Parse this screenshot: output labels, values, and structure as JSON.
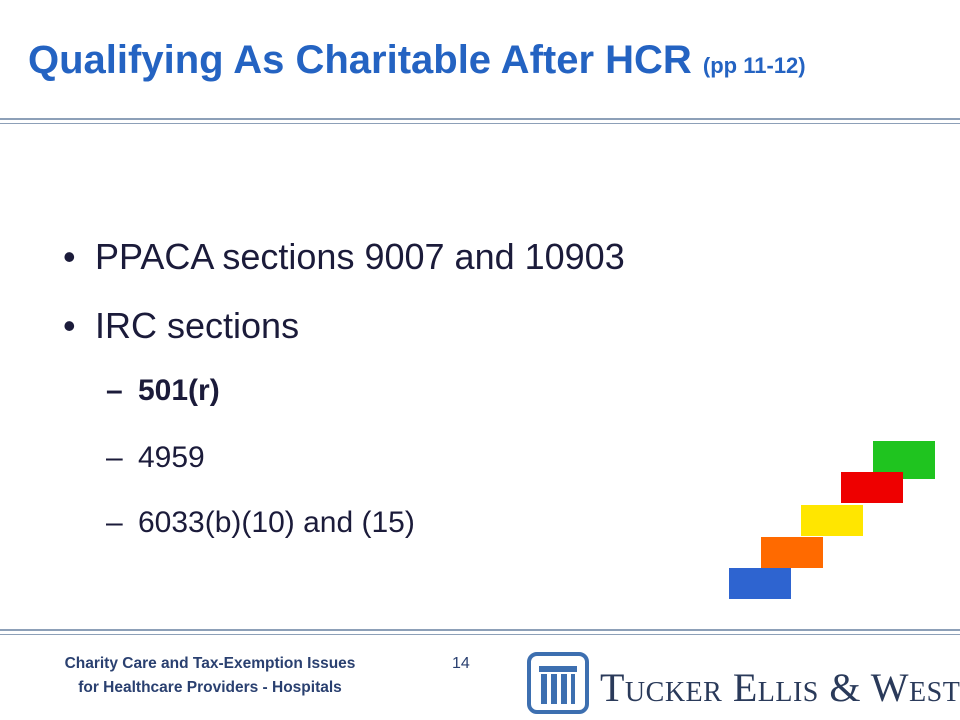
{
  "header": {
    "title": "Qualifying As Charitable After HCR",
    "title_note": "(pp 11-12)"
  },
  "body": {
    "bullets": [
      {
        "text": "PPACA sections 9007 and 10903"
      },
      {
        "text": "IRC sections",
        "subitems": [
          "501(r)",
          "4959",
          "6033(b)(10) and (15)"
        ]
      }
    ]
  },
  "footer": {
    "line1": "Charity Care and Tax-Exemption Issues",
    "line2": "for Healthcare Providers - Hospitals",
    "page_number": "14",
    "logo_text": "Tucker Ellis & West"
  }
}
